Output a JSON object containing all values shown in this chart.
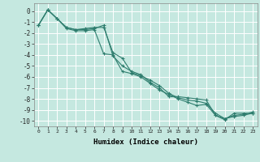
{
  "xlabel": "Humidex (Indice chaleur)",
  "xlim": [
    -0.5,
    23.5
  ],
  "ylim": [
    -10.5,
    0.7
  ],
  "yticks": [
    0,
    -1,
    -2,
    -3,
    -4,
    -5,
    -6,
    -7,
    -8,
    -9,
    -10
  ],
  "xticks": [
    0,
    1,
    2,
    3,
    4,
    5,
    6,
    7,
    8,
    9,
    10,
    11,
    12,
    13,
    14,
    15,
    16,
    17,
    18,
    19,
    20,
    21,
    22,
    23
  ],
  "background_color": "#c5e8e0",
  "grid_color": "#ffffff",
  "line_color": "#2e7d6e",
  "x": [
    0,
    1,
    2,
    3,
    4,
    5,
    6,
    7,
    8,
    9,
    10,
    11,
    12,
    13,
    14,
    15,
    16,
    17,
    18,
    19,
    20,
    21,
    22,
    23
  ],
  "series": [
    [
      -1.3,
      0.1,
      -0.7,
      -1.5,
      -1.7,
      -1.7,
      -1.6,
      -1.3,
      -4.1,
      -5.0,
      -5.5,
      -5.8,
      -6.5,
      -7.0,
      -7.8,
      -7.8,
      -7.9,
      -8.0,
      -8.1,
      -9.5,
      -9.9,
      -9.3,
      -9.3,
      -9.3
    ],
    [
      -1.3,
      0.1,
      -0.7,
      -1.5,
      -1.7,
      -1.6,
      -1.5,
      -1.5,
      -3.8,
      -4.3,
      -5.6,
      -5.9,
      -6.3,
      -6.8,
      -7.5,
      -7.9,
      -8.1,
      -8.2,
      -8.4,
      -9.3,
      -9.8,
      -9.5,
      -9.4,
      -9.2
    ],
    [
      -1.3,
      0.1,
      -0.7,
      -1.6,
      -1.8,
      -1.8,
      -1.7,
      -3.9,
      -4.0,
      -5.5,
      -5.7,
      -6.0,
      -6.6,
      -7.2,
      -7.6,
      -8.0,
      -8.3,
      -8.6,
      -8.5,
      -9.5,
      -9.8,
      -9.6,
      -9.5,
      -9.3
    ]
  ]
}
